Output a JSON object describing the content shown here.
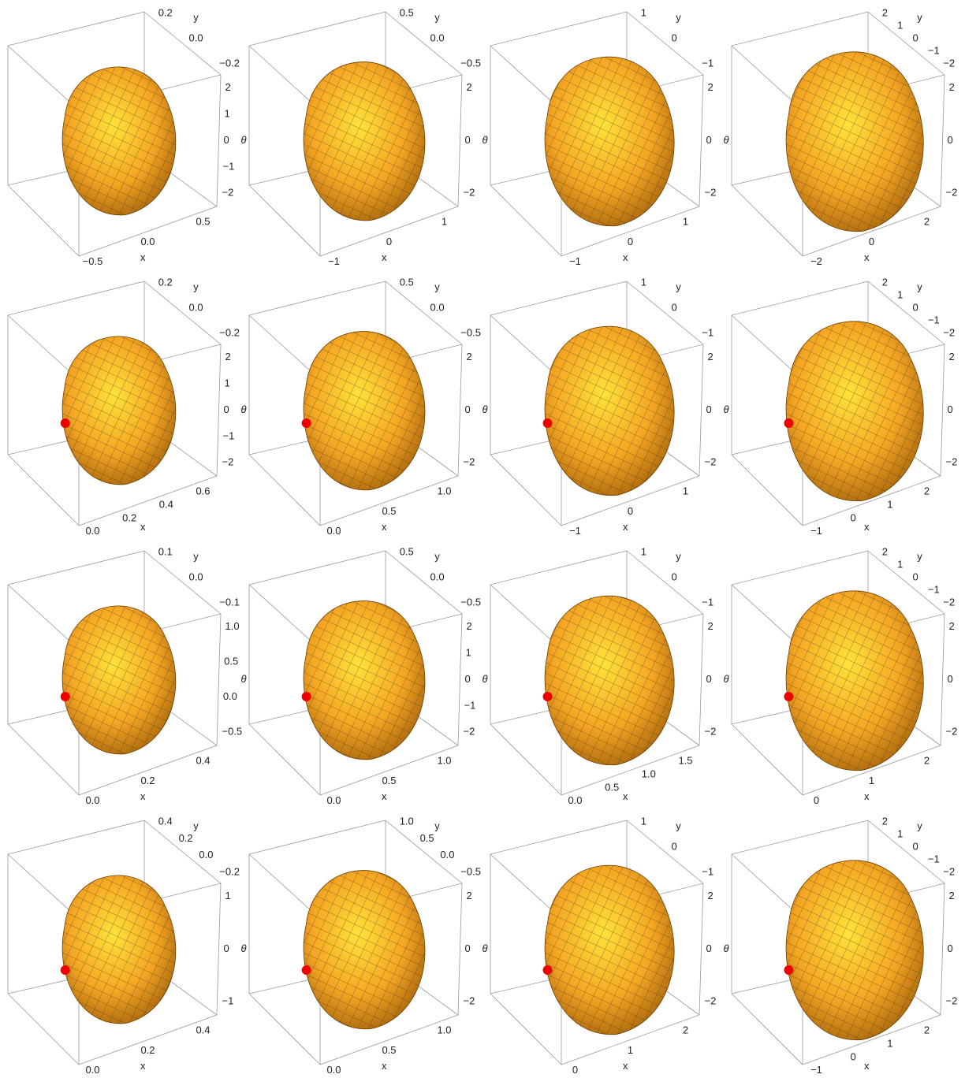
{
  "axis_labels": {
    "x": "x",
    "y": "y",
    "theta": "θ"
  },
  "panels": [
    {
      "y_ticks": [
        "0.2",
        "0.0",
        "−0.2"
      ],
      "theta_ticks": [
        "2",
        "1",
        "0",
        "−1",
        "−2"
      ],
      "x_ticks": [
        "−0.5",
        "0.0",
        "0.5"
      ]
    },
    {
      "y_ticks": [
        "0.5",
        "0.0",
        "−0.5"
      ],
      "theta_ticks": [
        "2",
        "0",
        "−2"
      ],
      "x_ticks": [
        "−1",
        "0",
        "1"
      ]
    },
    {
      "y_ticks": [
        "1",
        "0",
        "−1"
      ],
      "theta_ticks": [
        "2",
        "0",
        "−2"
      ],
      "x_ticks": [
        "−1",
        "0",
        "1"
      ]
    },
    {
      "y_ticks": [
        "2",
        "1",
        "0",
        "−1",
        "−2"
      ],
      "theta_ticks": [
        "2",
        "0",
        "−2"
      ],
      "x_ticks": [
        "−2",
        "0",
        "2"
      ]
    },
    {
      "y_ticks": [
        "0.2",
        "0.0",
        "−0.2"
      ],
      "theta_ticks": [
        "2",
        "1",
        "0",
        "−1",
        "−2"
      ],
      "x_ticks": [
        "0.0",
        "0.2",
        "0.4",
        "0.6"
      ]
    },
    {
      "y_ticks": [
        "0.5",
        "0.0",
        "−0.5"
      ],
      "theta_ticks": [
        "2",
        "0",
        "−2"
      ],
      "x_ticks": [
        "0.0",
        "0.5",
        "1.0"
      ]
    },
    {
      "y_ticks": [
        "1",
        "0",
        "−1"
      ],
      "theta_ticks": [
        "2",
        "0",
        "−2"
      ],
      "x_ticks": [
        "−1",
        "0",
        "1"
      ]
    },
    {
      "y_ticks": [
        "2",
        "1",
        "0",
        "−1",
        "−2"
      ],
      "theta_ticks": [
        "2",
        "0",
        "−2"
      ],
      "x_ticks": [
        "−1",
        "0",
        "1",
        "2"
      ]
    },
    {
      "y_ticks": [
        "0.1",
        "0.0",
        "−0.1"
      ],
      "theta_ticks": [
        "1.0",
        "0.5",
        "0.0",
        "−0.5"
      ],
      "x_ticks": [
        "0.0",
        "0.2",
        "0.4"
      ]
    },
    {
      "y_ticks": [
        "0.5",
        "0.0",
        "−0.5"
      ],
      "theta_ticks": [
        "2",
        "1",
        "0",
        "−1",
        "−2"
      ],
      "x_ticks": [
        "0.0",
        "0.5",
        "1.0"
      ]
    },
    {
      "y_ticks": [
        "1",
        "0",
        "−1"
      ],
      "theta_ticks": [
        "2",
        "0",
        "−2"
      ],
      "x_ticks": [
        "0.0",
        "0.5",
        "1.0",
        "1.5"
      ]
    },
    {
      "y_ticks": [
        "2",
        "1",
        "0",
        "−1",
        "−2"
      ],
      "theta_ticks": [
        "2",
        "0",
        "−2"
      ],
      "x_ticks": [
        "0",
        "1",
        "2"
      ]
    },
    {
      "y_ticks": [
        "0.4",
        "0.2",
        "0.0",
        "−0.2"
      ],
      "theta_ticks": [
        "1",
        "0",
        "−1"
      ],
      "x_ticks": [
        "0.0",
        "0.2",
        "0.4"
      ]
    },
    {
      "y_ticks": [
        "1.0",
        "0.5",
        "0.0",
        "−0.5"
      ],
      "theta_ticks": [
        "2",
        "0",
        "−2"
      ],
      "x_ticks": [
        "0.0",
        "0.5",
        "1.0"
      ]
    },
    {
      "y_ticks": [
        "1",
        "0",
        "−1"
      ],
      "theta_ticks": [
        "2",
        "0",
        "−2"
      ],
      "x_ticks": [
        "0",
        "1",
        "2"
      ]
    },
    {
      "y_ticks": [
        "2",
        "1",
        "0",
        "−1",
        "−2"
      ],
      "theta_ticks": [
        "2",
        "0",
        "−2"
      ],
      "x_ticks": [
        "−1",
        "0",
        "1",
        "2"
      ]
    }
  ]
}
